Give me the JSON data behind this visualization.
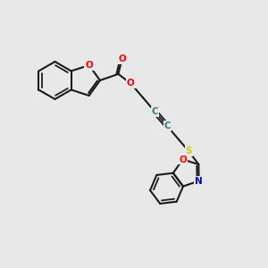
{
  "background_color": "#e8e8e8",
  "figsize": [
    3.0,
    3.0
  ],
  "dpi": 100,
  "bond_color": "#1a1a1a",
  "atom_colors": {
    "O": "#ff0000",
    "N": "#0000cc",
    "S": "#cccc00",
    "C_triple": "#2f7f7f"
  },
  "bond_lw": 1.5,
  "fs": 7.5
}
